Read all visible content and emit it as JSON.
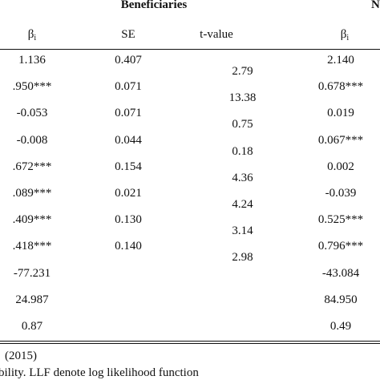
{
  "header": {
    "group_label": "Beneficiaries",
    "group_label_right_fragment": "N",
    "col_beta_left": "β",
    "col_beta_left_sub": "i",
    "col_se": "SE",
    "col_tvalue": "t-value",
    "col_beta_right": "β",
    "col_beta_right_sub": "i"
  },
  "rows_left": [
    {
      "beta": "1.136",
      "se": "0.407"
    },
    {
      "beta": ".950***",
      "se": "0.071"
    },
    {
      "beta": "-0.053",
      "se": "0.071"
    },
    {
      "beta": "-0.008",
      "se": "0.044"
    },
    {
      "beta": ".672***",
      "se": "0.154"
    },
    {
      "beta": ".089***",
      "se": "0.021"
    },
    {
      "beta": ".409***",
      "se": "0.130"
    },
    {
      "beta": ".418***",
      "se": "0.140"
    },
    {
      "beta": "-77.231",
      "se": ""
    },
    {
      "beta": "24.987",
      "se": ""
    },
    {
      "beta": "0.87",
      "se": ""
    }
  ],
  "tvalues": [
    "2.79",
    "13.38",
    "0.75",
    "0.18",
    "4.36",
    "4.24",
    "3.14",
    "2.98"
  ],
  "rows_right": [
    "2.140",
    "0.678***",
    "0.019",
    "0.067***",
    "0.002",
    "-0.039",
    "0.525***",
    "0.796***",
    "-43.084",
    "84.950",
    "0.49"
  ],
  "footnotes": {
    "source": "(2015)",
    "note": "bility. LLF denote log likelihood function"
  }
}
